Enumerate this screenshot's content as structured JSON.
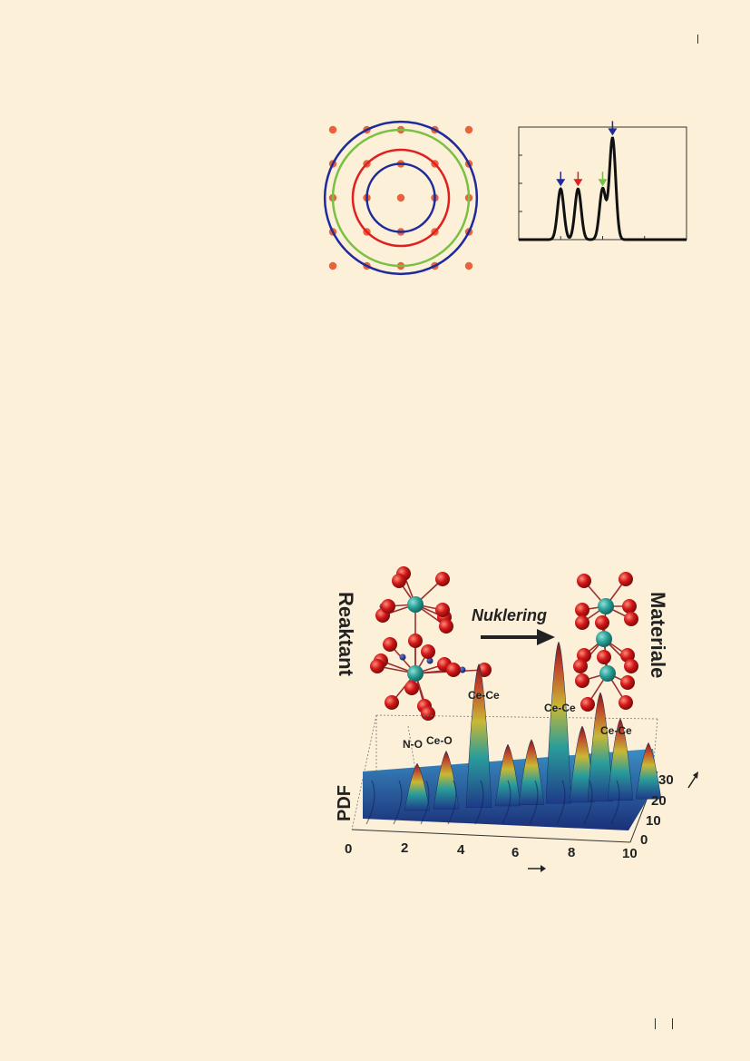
{
  "figure1": {
    "lattice_color": "#e8623c",
    "ring_colors": [
      "#1f2a9c",
      "#e02020",
      "#7ac043",
      "#1f2a9c"
    ]
  },
  "chart_data": {
    "type": "line",
    "title": "",
    "xlabel": "",
    "ylabel": "",
    "series": [
      {
        "name": "",
        "color": "#111111"
      }
    ],
    "peaks": [
      {
        "x": 1.0,
        "height": 0.45,
        "arrow_color": "#1f2a9c"
      },
      {
        "x": 1.414,
        "height": 0.45,
        "arrow_color": "#e02020"
      },
      {
        "x": 2.0,
        "height": 0.45,
        "arrow_color": "#7ac043"
      },
      {
        "x": 2.236,
        "height": 0.9,
        "arrow_color": "#1f2a9c"
      }
    ],
    "xlim": [
      0,
      4
    ],
    "ylim": [
      0,
      1
    ],
    "grid": false
  },
  "figure2": {
    "reactant_label": "Reaktant",
    "nucleation_label": "Nuklering",
    "material_label": "Materiale",
    "peak_labels": [
      "N-O",
      "Ce-O",
      "Ce-Ce",
      "Ce-Ce",
      "Ce-Ce"
    ],
    "z_axis_label": "PDF",
    "x_ticks": [
      "0",
      "2",
      "4",
      "6",
      "8",
      "10"
    ],
    "y_ticks": [
      "0",
      "10",
      "20",
      "30"
    ],
    "atom_colors": {
      "ce": "#2aa198",
      "o": "#d01818",
      "n": "#1c2a80"
    }
  }
}
